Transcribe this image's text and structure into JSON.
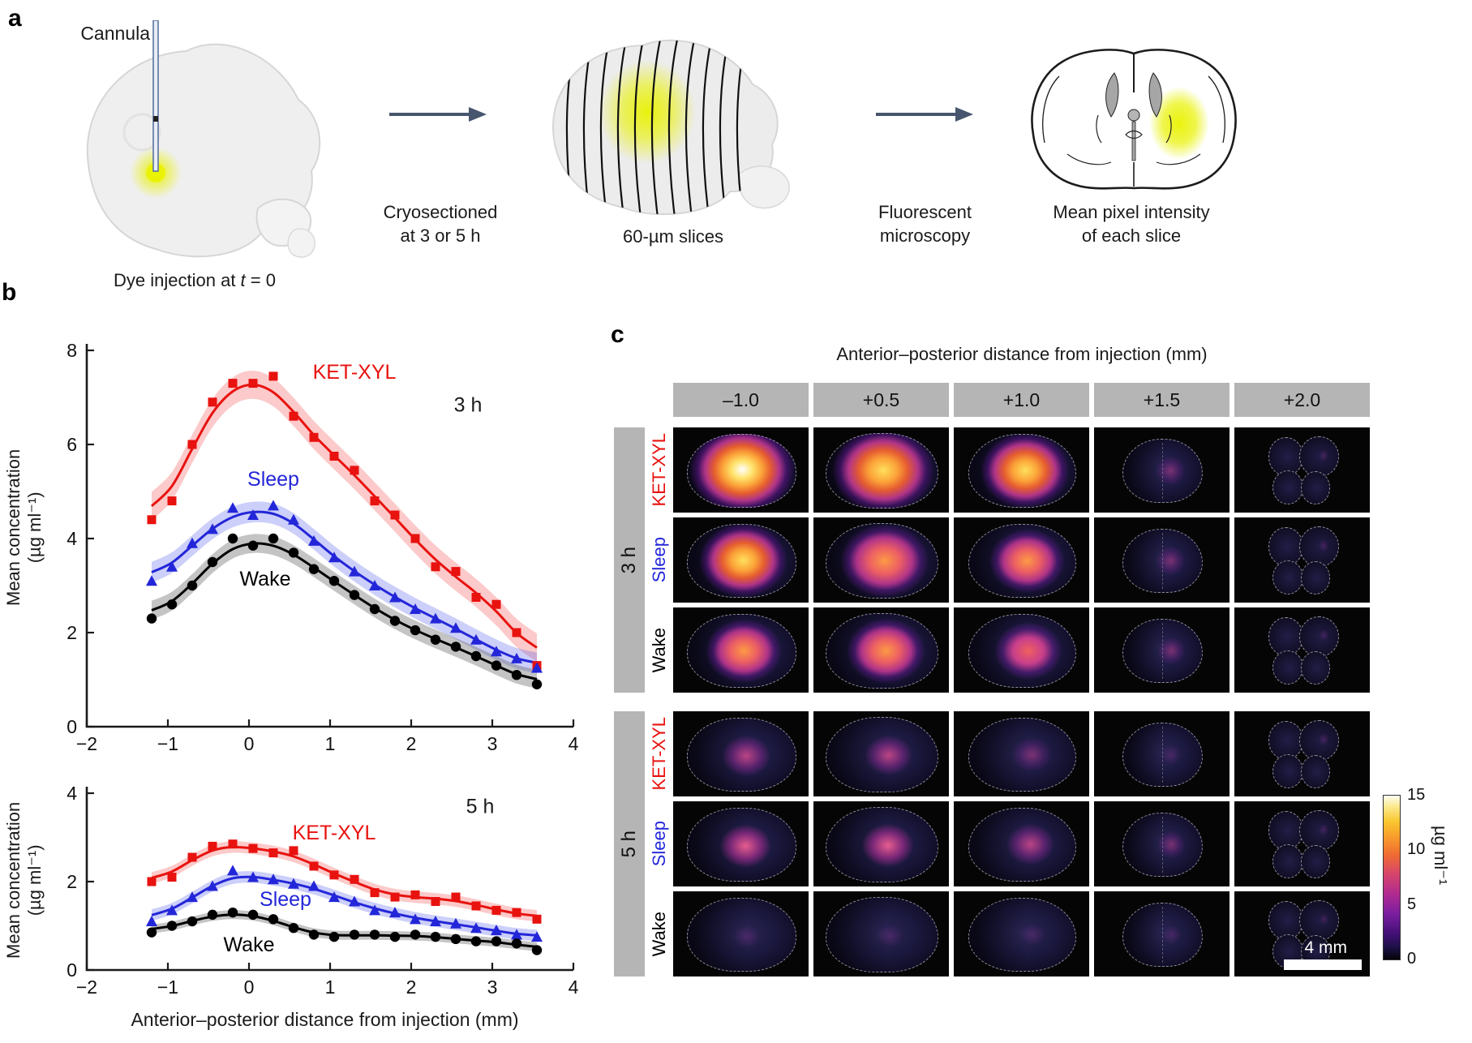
{
  "figure": {
    "panel_a_label": "a",
    "panel_b_label": "b",
    "panel_c_label": "c"
  },
  "panel_a": {
    "cannula_label": "Cannula",
    "caption1_pre": "Dye injection at ",
    "caption1_var": "t",
    "caption1_post": " = 0",
    "arrow1_caption": [
      "Cryosectioned",
      "at 3 or 5 h"
    ],
    "caption2": "60-µm slices",
    "arrow2_caption": [
      "Fluorescent",
      "microscopy"
    ],
    "caption3": [
      "Mean pixel intensity",
      "of each slice"
    ]
  },
  "panel_b": {
    "ylabel_line1": "Mean concentration",
    "ylabel_line2": "(µg ml⁻¹)",
    "xlabel": "Anterior–posterior distance from injection (mm)"
  },
  "chart_data": [
    {
      "id": "3h",
      "type": "scatter",
      "time_label": "3 h",
      "x": [
        -1.2,
        -0.95,
        -0.7,
        -0.45,
        -0.2,
        0.05,
        0.3,
        0.55,
        0.8,
        1.05,
        1.3,
        1.55,
        1.8,
        2.05,
        2.3,
        2.55,
        2.8,
        3.05,
        3.3,
        3.55
      ],
      "series": [
        {
          "name": "KET-XYL",
          "marker": "square",
          "color": "#e8120f",
          "band": 0.3,
          "band_color": "rgba(246,80,80,0.3)",
          "values": [
            4.4,
            4.8,
            6.0,
            6.9,
            7.3,
            7.3,
            7.45,
            6.6,
            6.15,
            5.75,
            5.45,
            4.8,
            4.5,
            4.0,
            3.4,
            3.3,
            2.75,
            2.6,
            2.0,
            1.3
          ]
        },
        {
          "name": "Sleep",
          "marker": "triangle",
          "color": "#2326d8",
          "band": 0.22,
          "band_color": "rgba(85,95,235,0.3)",
          "values": [
            3.1,
            3.4,
            3.9,
            4.2,
            4.65,
            4.5,
            4.7,
            4.4,
            3.95,
            3.6,
            3.3,
            3.0,
            2.75,
            2.5,
            2.3,
            2.1,
            1.85,
            1.6,
            1.45,
            1.25
          ]
        },
        {
          "name": "Wake",
          "marker": "circle",
          "color": "#000000",
          "band": 0.2,
          "band_color": "rgba(100,100,100,0.38)",
          "values": [
            2.3,
            2.6,
            3.0,
            3.5,
            4.0,
            3.85,
            4.0,
            3.7,
            3.35,
            3.1,
            2.8,
            2.5,
            2.25,
            2.05,
            1.85,
            1.7,
            1.5,
            1.3,
            1.1,
            0.9
          ]
        }
      ],
      "xlim": [
        -2,
        4
      ],
      "ylim": [
        0,
        8
      ],
      "xticks": [
        -2,
        -1,
        0,
        1,
        2,
        3,
        4
      ],
      "yticks": [
        0,
        2,
        4,
        6,
        8
      ],
      "annotations": {
        "KET-XYL": [
          1.3,
          7.4
        ],
        "Sleep": [
          0.3,
          5.12
        ],
        "Wake": [
          0.2,
          3.0
        ],
        "time": [
          2.7,
          6.7
        ]
      }
    },
    {
      "id": "5h",
      "type": "scatter",
      "time_label": "5 h",
      "x": [
        -1.2,
        -0.95,
        -0.7,
        -0.45,
        -0.2,
        0.05,
        0.3,
        0.55,
        0.8,
        1.05,
        1.3,
        1.55,
        1.8,
        2.05,
        2.3,
        2.55,
        2.8,
        3.05,
        3.3,
        3.55
      ],
      "series": [
        {
          "name": "KET-XYL",
          "marker": "square",
          "color": "#e8120f",
          "band": 0.13,
          "band_color": "rgba(246,80,80,0.3)",
          "values": [
            2.0,
            2.1,
            2.55,
            2.8,
            2.85,
            2.75,
            2.65,
            2.7,
            2.35,
            2.15,
            2.05,
            1.75,
            1.65,
            1.7,
            1.55,
            1.65,
            1.45,
            1.35,
            1.3,
            1.15
          ]
        },
        {
          "name": "Sleep",
          "marker": "triangle",
          "color": "#2326d8",
          "band": 0.13,
          "band_color": "rgba(85,95,235,0.3)",
          "values": [
            1.1,
            1.35,
            1.65,
            1.9,
            2.25,
            2.1,
            2.05,
            1.95,
            1.9,
            1.65,
            1.55,
            1.35,
            1.3,
            1.15,
            1.1,
            1.05,
            0.95,
            0.9,
            0.8,
            0.75
          ]
        },
        {
          "name": "Wake",
          "marker": "circle",
          "color": "#000000",
          "band": 0.1,
          "band_color": "rgba(100,100,100,0.38)",
          "values": [
            0.85,
            1.0,
            1.1,
            1.25,
            1.3,
            1.25,
            1.15,
            0.95,
            0.8,
            0.75,
            0.8,
            0.8,
            0.75,
            0.8,
            0.75,
            0.7,
            0.65,
            0.65,
            0.6,
            0.45
          ]
        }
      ],
      "xlim": [
        -2,
        4
      ],
      "ylim": [
        0,
        4
      ],
      "xticks": [
        -2,
        -1,
        0,
        1,
        2,
        3,
        4
      ],
      "yticks": [
        0,
        2,
        4
      ],
      "annotations": {
        "KET-XYL": [
          1.05,
          2.95
        ],
        "Sleep": [
          0.45,
          1.45
        ],
        "Wake": [
          0.0,
          0.42
        ],
        "time": [
          2.85,
          3.55
        ]
      }
    }
  ],
  "panel_c": {
    "title": "Anterior–posterior distance from injection (mm)",
    "columns": [
      "–1.0",
      "+0.5",
      "+1.0",
      "+1.5",
      "+2.0"
    ],
    "blocks": [
      {
        "time": "3 h",
        "rows": [
          {
            "label": "KET-XYL",
            "color": "#e8120f",
            "heat": [
              4,
              3.6,
              3.1,
              0.5,
              0.3
            ]
          },
          {
            "label": "Sleep",
            "color": "#2326d8",
            "heat": [
              3,
              2.9,
              2.3,
              0.5,
              0.3
            ]
          },
          {
            "label": "Wake",
            "color": "#000000",
            "heat": [
              2.3,
              2.3,
              1.9,
              0.4,
              0.2
            ]
          }
        ]
      },
      {
        "time": "5 h",
        "rows": [
          {
            "label": "KET-XYL",
            "color": "#e8120f",
            "heat": [
              1.0,
              0.9,
              0.5,
              0.3,
              0.3
            ]
          },
          {
            "label": "Sleep",
            "color": "#2326d8",
            "heat": [
              1.4,
              1.3,
              1.0,
              0.4,
              0.3
            ]
          },
          {
            "label": "Wake",
            "color": "#000000",
            "heat": [
              0.3,
              0.2,
              0.2,
              0.2,
              0.2
            ]
          }
        ]
      }
    ],
    "colorbar": {
      "ticks": [
        "15",
        "10",
        "5",
        "0"
      ],
      "label": "µg ml⁻¹"
    },
    "scalebar_label": "4 mm"
  },
  "colors": {
    "ket_xyl": "#e8120f",
    "sleep": "#2326d8",
    "wake": "#000000",
    "arrow": "#47566e",
    "dye": "#e8f000",
    "panel_gray": "#b5b5b5"
  }
}
